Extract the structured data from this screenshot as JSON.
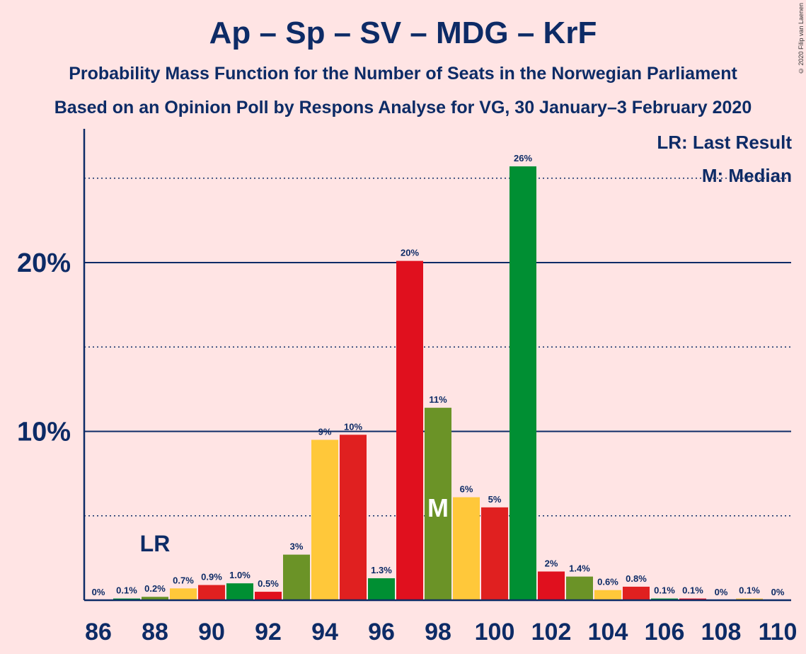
{
  "title": "Ap – Sp – SV – MDG – KrF",
  "subtitle1": "Probability Mass Function for the Number of Seats in the Norwegian Parliament",
  "subtitle2": "Based on an Opinion Poll by Respons Analyse for VG, 30 January–3 February 2020",
  "copyright": "© 2020 Filip van Laenen",
  "legend": {
    "lr": "LR: Last Result",
    "m": "M: Median"
  },
  "colors": {
    "background": "#ffe4e4",
    "text": "#0d2b66",
    "ap": "#e0101e",
    "sp": "#008f33",
    "krf": "#ffc83a",
    "sv": "#e02020",
    "mdg": "#6b9327"
  },
  "chart_data": {
    "type": "bar",
    "x": [
      86,
      87,
      88,
      89,
      90,
      91,
      92,
      93,
      94,
      95,
      96,
      97,
      98,
      99,
      100,
      101,
      102,
      103,
      104,
      105,
      106,
      107,
      108,
      109,
      110
    ],
    "values": [
      0,
      0.1,
      0.2,
      0.7,
      0.9,
      1.0,
      0.5,
      2.7,
      9.5,
      9.8,
      1.3,
      20.1,
      11.4,
      6.1,
      5.5,
      25.7,
      1.7,
      1.4,
      0.6,
      0.8,
      0.1,
      0.1,
      0,
      0.1,
      0
    ],
    "labels": [
      "0%",
      "0.1%",
      "0.2%",
      "0.7%",
      "0.9%",
      "1.0%",
      "0.5%",
      "3%",
      "9%",
      "10%",
      "1.3%",
      "20%",
      "11%",
      "6%",
      "5%",
      "26%",
      "2%",
      "1.4%",
      "0.6%",
      "0.8%",
      "0.1%",
      "0.1%",
      "0%",
      "0.1%",
      "0%"
    ],
    "bar_colors": [
      "#e0101e",
      "#008f33",
      "#6b9327",
      "#ffc83a",
      "#e02020",
      "#008f33",
      "#e0101e",
      "#6b9327",
      "#ffc83a",
      "#e02020",
      "#008f33",
      "#e0101e",
      "#6b9327",
      "#ffc83a",
      "#e02020",
      "#008f33",
      "#e0101e",
      "#6b9327",
      "#ffc83a",
      "#e02020",
      "#008f33",
      "#e0101e",
      "#6b9327",
      "#ffc83a",
      "#e02020"
    ],
    "x_ticks": [
      "86",
      "88",
      "90",
      "92",
      "94",
      "96",
      "98",
      "100",
      "102",
      "104",
      "106",
      "108",
      "110"
    ],
    "y_ticks": [
      "10%",
      "20%"
    ],
    "ylim": [
      0,
      27.5
    ],
    "last_result_seat": 88,
    "last_result_label": "LR",
    "median_seat": 98,
    "median_label": "M"
  }
}
